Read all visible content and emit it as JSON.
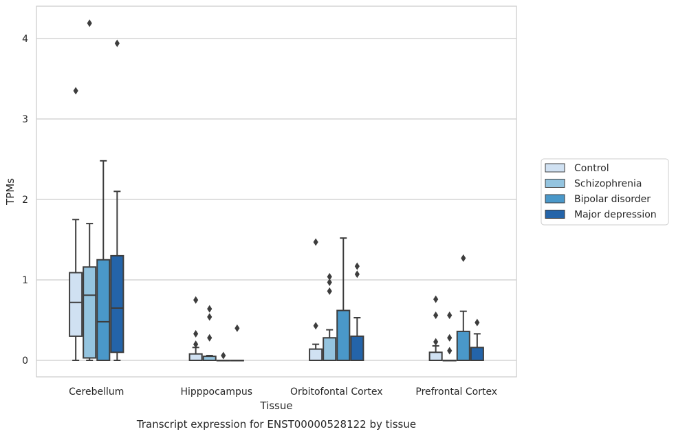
{
  "chart_data": {
    "type": "box",
    "title": "",
    "caption": "Transcript expression for ENST00000528122 by tissue",
    "xlabel": "Tissue",
    "ylabel": "TPMs",
    "ylim": [
      -0.2,
      4.4
    ],
    "yticks": [
      0,
      1,
      2,
      3,
      4
    ],
    "grid": "horizontal",
    "legend_position": "right",
    "categories": [
      "Cerebellum",
      "Hipppocampus",
      "Orbitofontal Cortex",
      "Prefrontal Cortex"
    ],
    "series": [
      {
        "name": "Control",
        "color": "#d0e1f2",
        "boxes": [
          {
            "whislo": 0.0,
            "q1": 0.3,
            "med": 0.72,
            "q3": 1.09,
            "whishi": 1.75,
            "fliers": [
              3.35
            ]
          },
          {
            "whislo": 0.0,
            "q1": 0.0,
            "med": 0.0,
            "q3": 0.08,
            "whishi": 0.16,
            "fliers": [
              0.2,
              0.33,
              0.75
            ]
          },
          {
            "whislo": 0.0,
            "q1": 0.0,
            "med": 0.0,
            "q3": 0.14,
            "whishi": 0.2,
            "fliers": [
              0.43,
              1.47
            ]
          },
          {
            "whislo": 0.0,
            "q1": 0.0,
            "med": 0.0,
            "q3": 0.1,
            "whishi": 0.18,
            "fliers": [
              0.23,
              0.56,
              0.76
            ]
          }
        ]
      },
      {
        "name": "Schizophrenia",
        "color": "#94c4df",
        "boxes": [
          {
            "whislo": 0.0,
            "q1": 0.03,
            "med": 0.81,
            "q3": 1.16,
            "whishi": 1.7,
            "fliers": [
              4.19
            ]
          },
          {
            "whislo": 0.0,
            "q1": 0.0,
            "med": 0.0,
            "q3": 0.05,
            "whishi": 0.06,
            "fliers": [
              0.28,
              0.54,
              0.64
            ]
          },
          {
            "whislo": 0.0,
            "q1": 0.0,
            "med": 0.0,
            "q3": 0.28,
            "whishi": 0.38,
            "fliers": [
              0.86,
              0.97,
              1.04
            ]
          },
          {
            "whislo": 0.0,
            "q1": 0.0,
            "med": 0.0,
            "q3": 0.0,
            "whishi": 0.0,
            "fliers": [
              0.12,
              0.28,
              0.56
            ]
          }
        ]
      },
      {
        "name": "Bipolar disorder",
        "color": "#4a98c9",
        "boxes": [
          {
            "whislo": 0.0,
            "q1": 0.0,
            "med": 0.48,
            "q3": 1.25,
            "whishi": 2.48,
            "fliers": []
          },
          {
            "whislo": 0.0,
            "q1": 0.0,
            "med": 0.0,
            "q3": 0.0,
            "whishi": 0.0,
            "fliers": [
              0.06
            ]
          },
          {
            "whislo": 0.0,
            "q1": 0.0,
            "med": 0.0,
            "q3": 0.62,
            "whishi": 1.52,
            "fliers": []
          },
          {
            "whislo": 0.0,
            "q1": 0.0,
            "med": 0.0,
            "q3": 0.36,
            "whishi": 0.61,
            "fliers": [
              1.27
            ]
          }
        ]
      },
      {
        "name": "Major depression",
        "color": "#2464a9",
        "boxes": [
          {
            "whislo": 0.0,
            "q1": 0.1,
            "med": 0.65,
            "q3": 1.3,
            "whishi": 2.1,
            "fliers": [
              3.94
            ]
          },
          {
            "whislo": 0.0,
            "q1": 0.0,
            "med": 0.0,
            "q3": 0.0,
            "whishi": 0.0,
            "fliers": [
              0.4
            ]
          },
          {
            "whislo": 0.0,
            "q1": 0.0,
            "med": 0.0,
            "q3": 0.3,
            "whishi": 0.53,
            "fliers": [
              1.07,
              1.17
            ]
          },
          {
            "whislo": 0.0,
            "q1": 0.0,
            "med": 0.0,
            "q3": 0.16,
            "whishi": 0.33,
            "fliers": [
              0.47
            ]
          }
        ]
      }
    ]
  }
}
